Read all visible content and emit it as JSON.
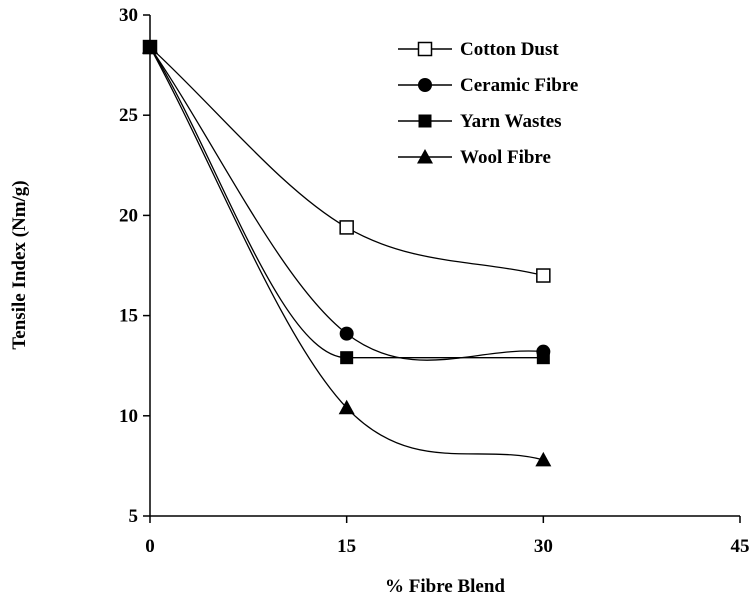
{
  "chart_data": {
    "type": "line",
    "title": "",
    "xlabel": "% Fibre Blend",
    "ylabel": "Tensile Index (Nm/g)",
    "xlim": [
      0,
      45
    ],
    "ylim": [
      5,
      30
    ],
    "xticks": [
      0,
      15,
      30,
      45
    ],
    "yticks": [
      5,
      10,
      15,
      20,
      25,
      30
    ],
    "x_tick_labels": [
      "0",
      "15",
      "30",
      "45"
    ],
    "y_tick_labels": [
      "5",
      "10",
      "15",
      "20",
      "25",
      "30"
    ],
    "grid": false,
    "legend_position": "top-right",
    "series": [
      {
        "name": "Cotton Dust",
        "marker": "open-square",
        "x": [
          0,
          15,
          30
        ],
        "y": [
          28.4,
          19.4,
          17.0
        ]
      },
      {
        "name": "Ceramic Fibre",
        "marker": "filled-circle",
        "x": [
          0,
          15,
          30
        ],
        "y": [
          28.4,
          14.1,
          13.2
        ]
      },
      {
        "name": "Yarn Wastes",
        "marker": "filled-square",
        "x": [
          0,
          15,
          30
        ],
        "y": [
          28.4,
          12.9,
          12.9
        ]
      },
      {
        "name": "Wool Fibre",
        "marker": "filled-triangle",
        "x": [
          0,
          15,
          30
        ],
        "y": [
          28.4,
          10.4,
          7.8
        ]
      }
    ]
  }
}
